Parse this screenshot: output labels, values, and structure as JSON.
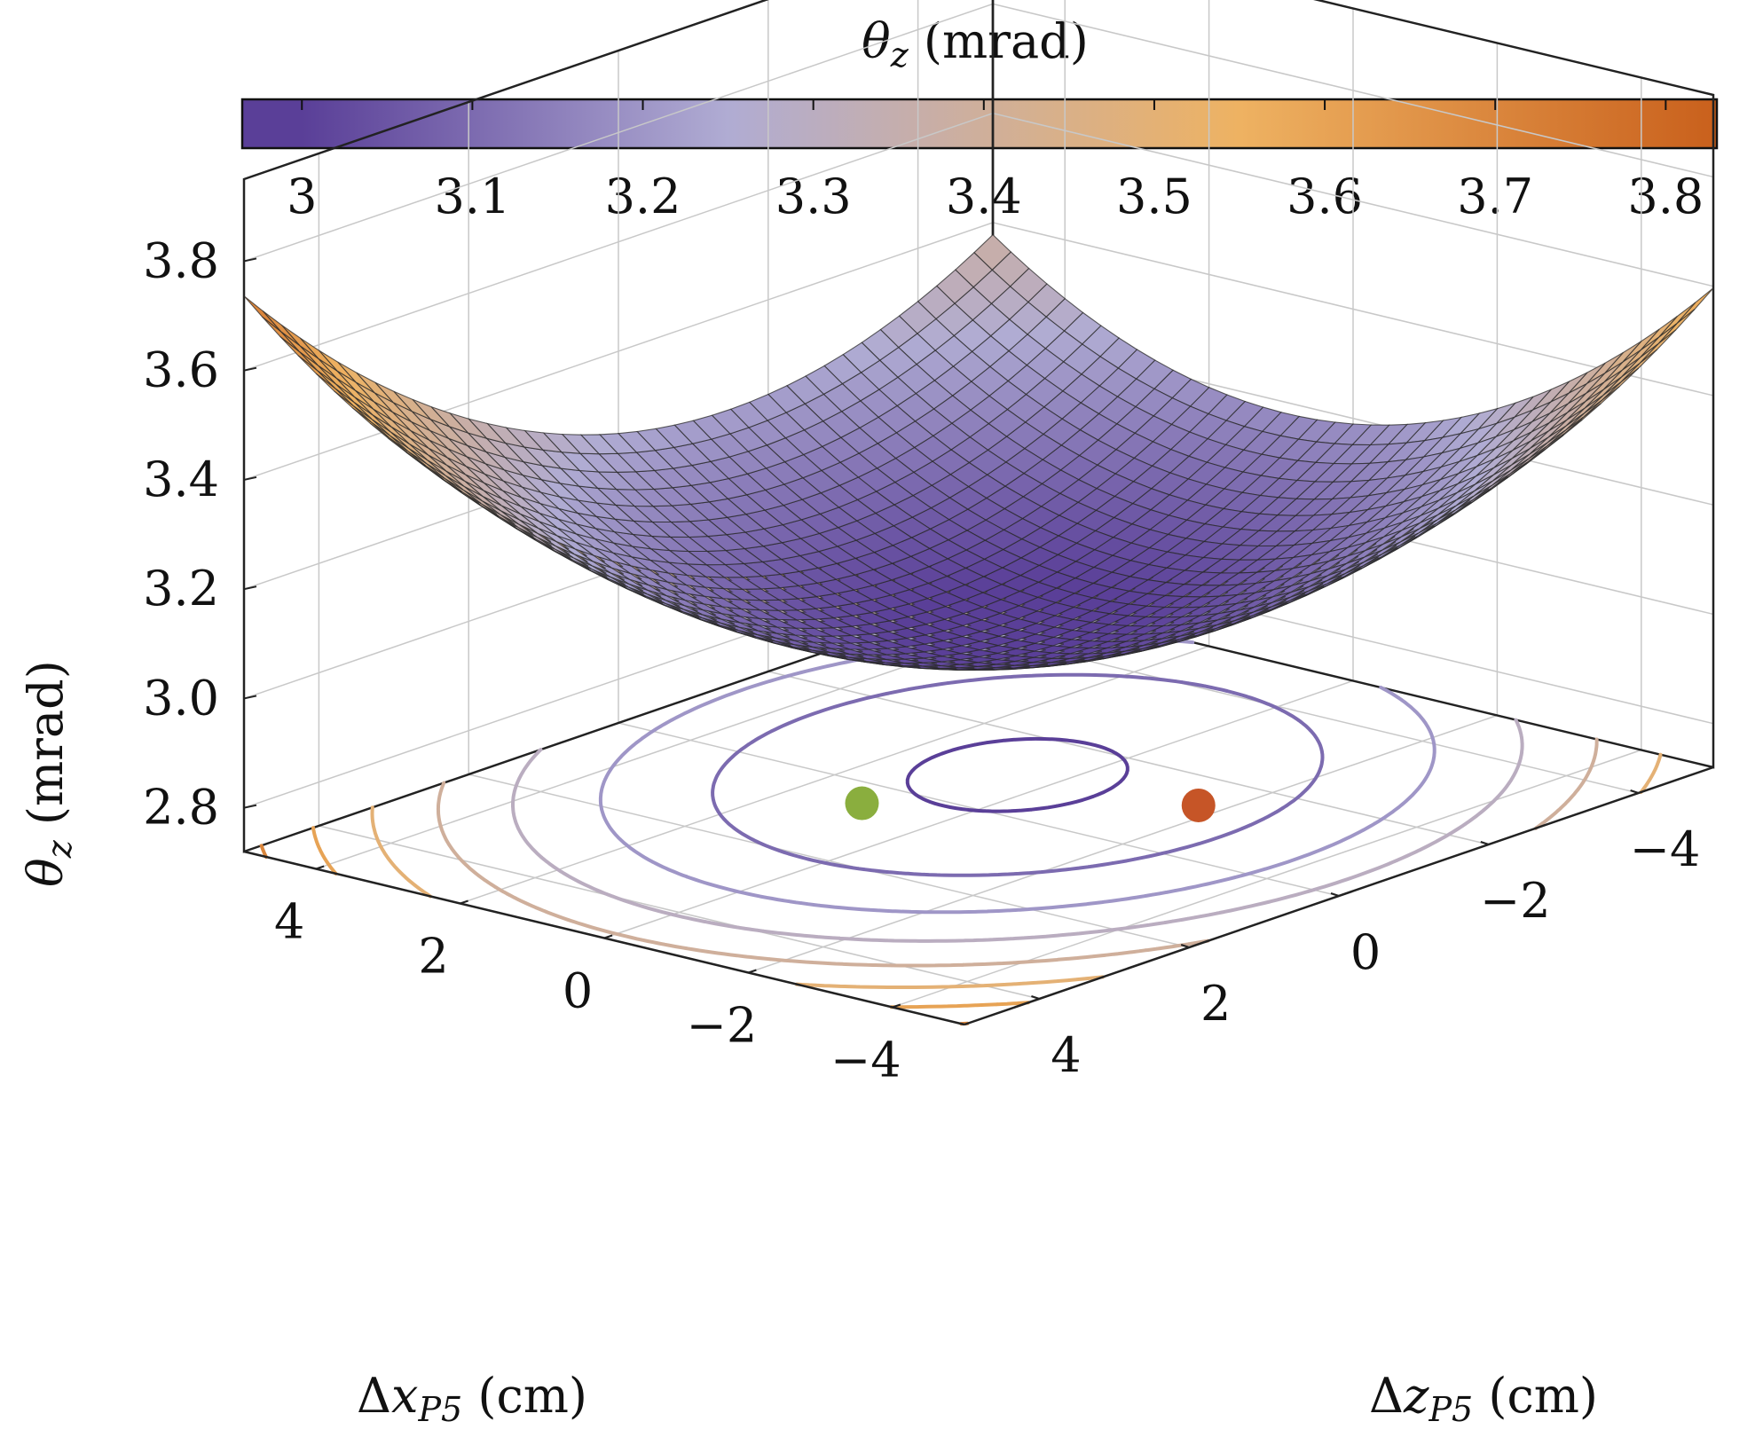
{
  "chart_data": {
    "type": "surface3d",
    "colorbar": {
      "title_var": "θ",
      "title_sub": "z",
      "title_unit": "(mrad)",
      "ticks": [
        "3",
        "3.1",
        "3.2",
        "3.3",
        "3.4",
        "3.5",
        "3.6",
        "3.7",
        "3.8"
      ],
      "tick_values": [
        3.0,
        3.1,
        3.2,
        3.3,
        3.4,
        3.5,
        3.6,
        3.7,
        3.8
      ],
      "range": [
        2.965,
        3.83
      ],
      "colors": [
        "#5a3f98",
        "#b0acd3",
        "#eeb262",
        "#c9601c"
      ],
      "color_stops": [
        3.0,
        3.25,
        3.55,
        3.83
      ]
    },
    "axes": {
      "x": {
        "label_prefix": "Δ",
        "label_var": "x",
        "label_sub": "P5",
        "label_unit": "(cm)",
        "ticks": [
          "4",
          "2",
          "0",
          "−2",
          "−4"
        ],
        "tick_values": [
          4,
          2,
          0,
          -2,
          -4
        ],
        "range": [
          -5,
          5
        ]
      },
      "z": {
        "label_prefix": "Δ",
        "label_var": "z",
        "label_sub": "P5",
        "label_unit": "(cm)",
        "ticks": [
          "4",
          "2",
          "0",
          "−2",
          "−4"
        ],
        "tick_values": [
          4,
          2,
          0,
          -2,
          -4
        ],
        "range": [
          -5,
          5
        ]
      },
      "vertical": {
        "label_var": "θ",
        "label_sub": "z",
        "label_unit": "(mrad)",
        "ticks": [
          "3.8",
          "3.6",
          "3.4",
          "3.2",
          "3.0",
          "2.8"
        ],
        "tick_values": [
          3.8,
          3.6,
          3.4,
          3.2,
          3.0,
          2.8
        ],
        "range": [
          2.72,
          3.95
        ]
      }
    },
    "surface": {
      "model": "quadratic bowl",
      "minimum": 2.985,
      "min_at": {
        "x": 0.5,
        "z": -1.0
      },
      "corner_values": [
        {
          "x": 5,
          "z": -5,
          "theta_z": 3.69
        },
        {
          "x": -5,
          "z": -5,
          "theta_z": 3.82
        },
        {
          "x": -5,
          "z": 5,
          "theta_z": 3.25
        },
        {
          "x": 5,
          "z": 5,
          "theta_z": 3.16
        }
      ],
      "mesh_divisions": 40,
      "grid": true
    },
    "contours": {
      "levels": [
        3.0,
        3.1,
        3.2,
        3.3,
        3.4,
        3.5,
        3.6,
        3.7,
        3.8
      ]
    },
    "points": [
      {
        "name": "",
        "x": 1.1,
        "z": 0.5,
        "color": "#8aae3e"
      },
      {
        "name": "",
        "x": -1.7,
        "z": -1.3,
        "color": "#c65527"
      }
    ]
  }
}
